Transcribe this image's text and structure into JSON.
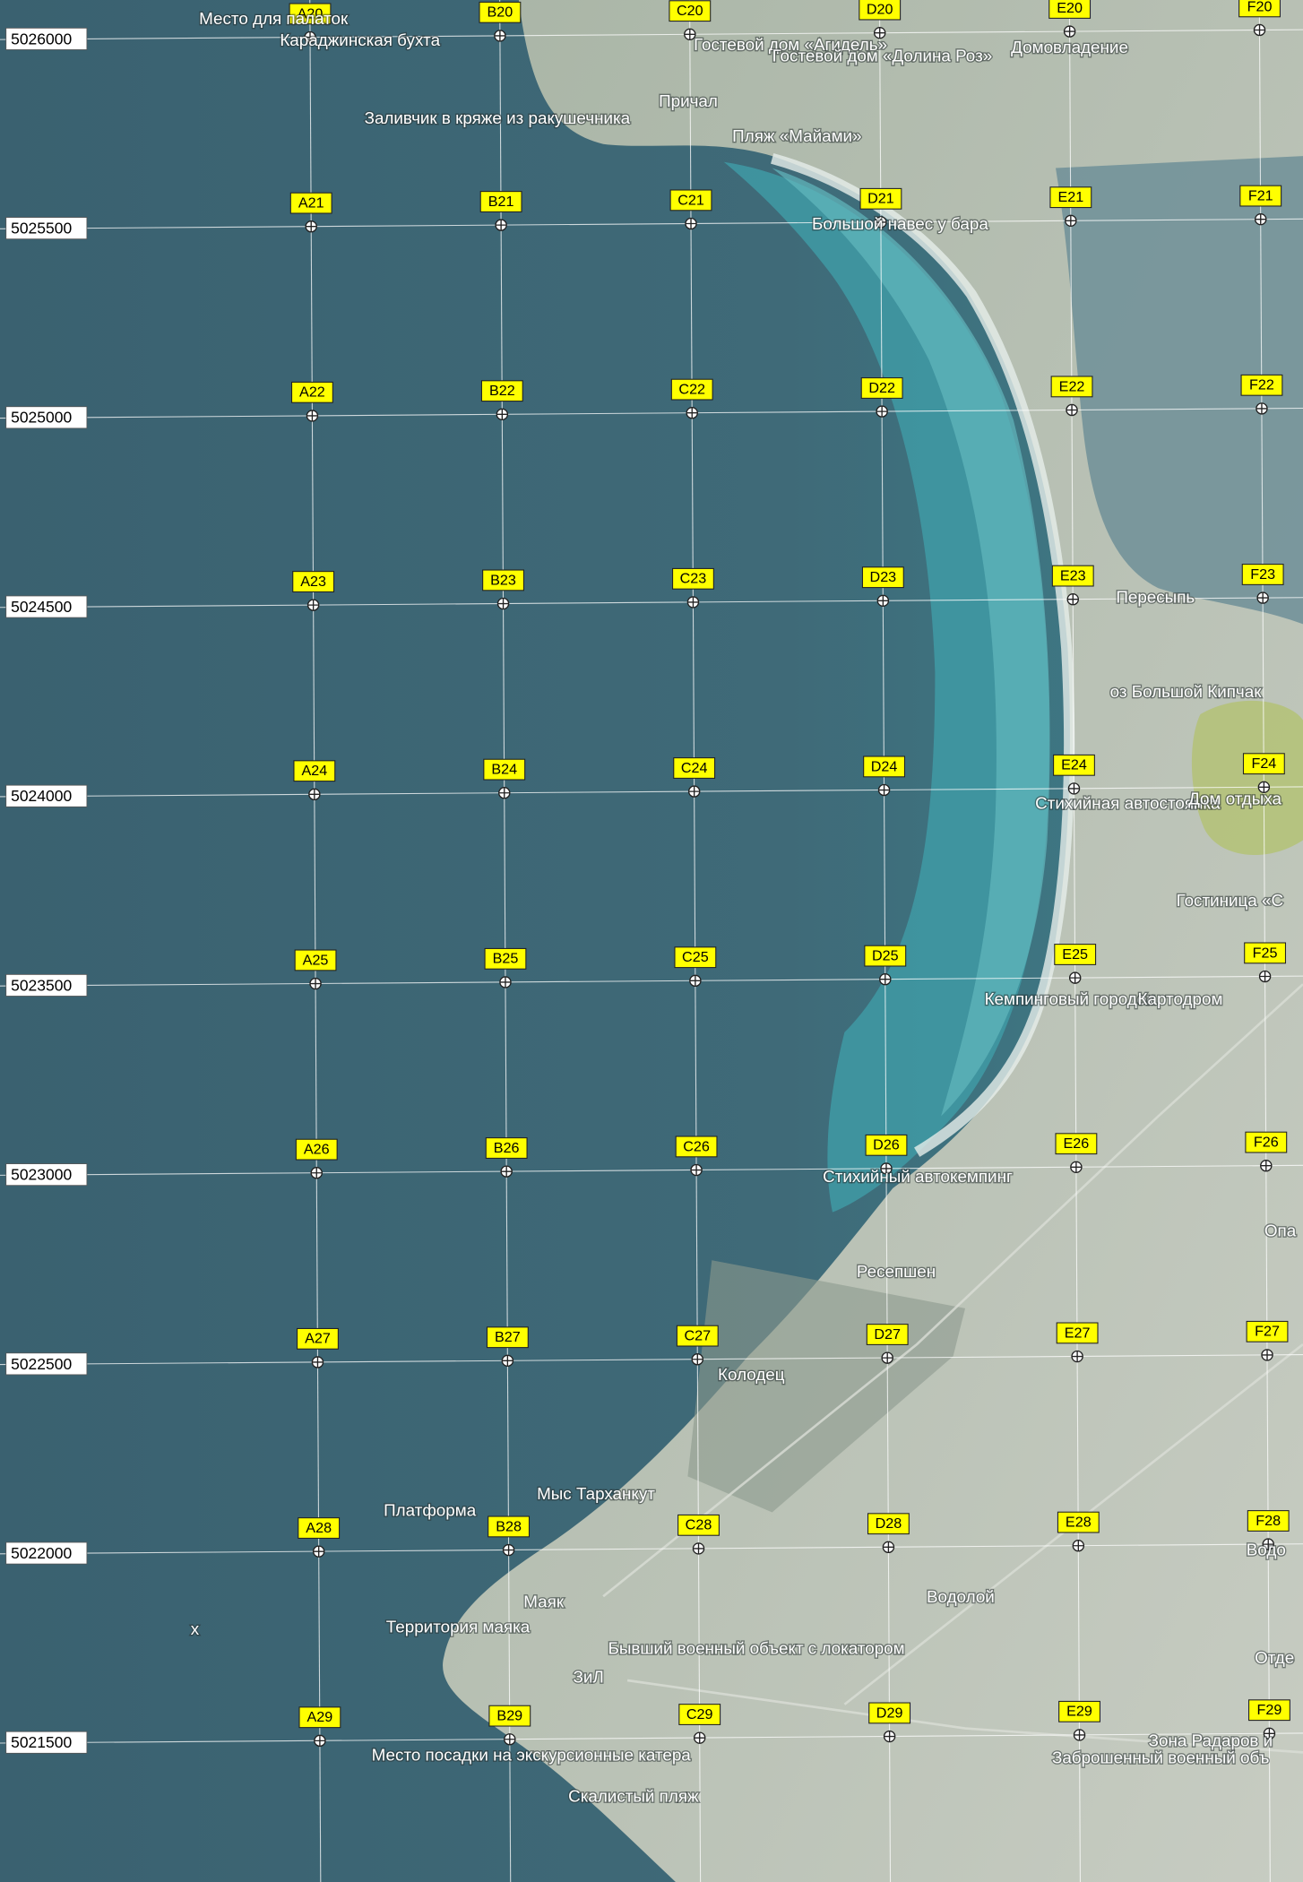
{
  "grid": {
    "rows": [
      [
        "A20",
        "B20",
        "C20",
        "D20",
        "E20",
        "F20"
      ],
      [
        "A21",
        "B21",
        "C21",
        "D21",
        "E21",
        "F21"
      ],
      [
        "A22",
        "B22",
        "C22",
        "D22",
        "E22",
        "F22"
      ],
      [
        "A23",
        "B23",
        "C23",
        "D23",
        "E23",
        "F23"
      ],
      [
        "A24",
        "B24",
        "C24",
        "D24",
        "E24",
        "F24"
      ],
      [
        "A25",
        "B25",
        "C25",
        "D25",
        "E25",
        "F25"
      ],
      [
        "A26",
        "B26",
        "C26",
        "D26",
        "E26",
        "F26"
      ],
      [
        "A27",
        "B27",
        "C27",
        "D27",
        "E27",
        "F27"
      ],
      [
        "A28",
        "B28",
        "C28",
        "D28",
        "E28",
        "F28"
      ],
      [
        "A29",
        "B29",
        "C29",
        "D29",
        "E29",
        "F29"
      ]
    ],
    "northings": [
      5026000,
      5025500,
      5025000,
      5024500,
      5024000,
      5023500,
      5023000,
      5022500,
      5022000,
      5021500
    ]
  },
  "places": [
    "Место для палаток",
    "Караджинская бухта",
    "Гостевой дом «Агидель»",
    "Гостевой дом «Долина Роз»",
    "Домовладение",
    "Причал",
    "Заливчик в кряже из ракушечника",
    "Пляж «Майами»",
    "Большой навес у бара",
    "Пересыпь",
    "оз Большой Кипчак",
    "Стихийная автостоянка",
    "Дом отдыха",
    "Гостиница «С",
    "Кемпинговый городок",
    "Картодром",
    "Стихийный автокемпинг",
    "Опа",
    "Ресепшен",
    "Колодец",
    "Мыс Тарханкут",
    "Платформа",
    "Водо",
    "Водолой",
    "Маяк",
    "Территория маяка",
    "Бывший военный объект с локатором",
    "Отде",
    "ЗиЛ",
    "Зона Радаров и",
    "Место посадки на экскурсионные катера",
    "Заброшенный военный объ",
    "Скалистый пляж",
    "х"
  ]
}
